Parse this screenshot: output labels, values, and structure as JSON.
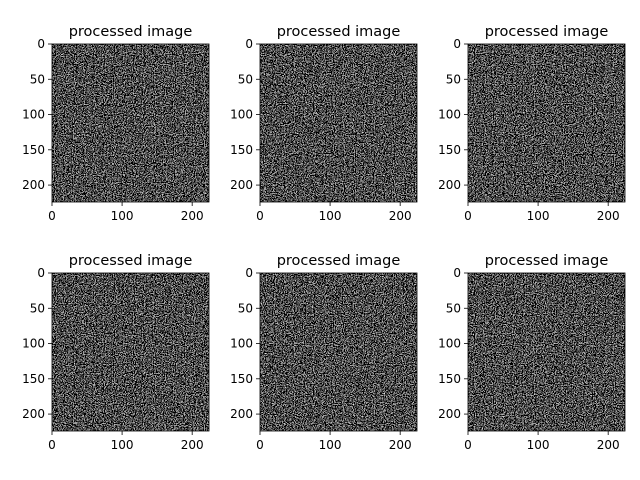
{
  "chart_data": [
    {
      "type": "heatmap",
      "title": "processed image",
      "colormap": "gray",
      "xlim": [
        0,
        224
      ],
      "ylim": [
        224,
        0
      ],
      "xticks": [
        0,
        100,
        200
      ],
      "yticks": [
        0,
        50,
        100,
        150,
        200
      ],
      "xtick_labels": [
        "0",
        "100",
        "200"
      ],
      "ytick_labels": [
        "0",
        "50",
        "100",
        "150",
        "200"
      ]
    },
    {
      "type": "heatmap",
      "title": "processed image",
      "colormap": "gray",
      "xlim": [
        0,
        224
      ],
      "ylim": [
        224,
        0
      ],
      "xticks": [
        0,
        100,
        200
      ],
      "yticks": [
        0,
        50,
        100,
        150,
        200
      ],
      "xtick_labels": [
        "0",
        "100",
        "200"
      ],
      "ytick_labels": [
        "0",
        "50",
        "100",
        "150",
        "200"
      ]
    },
    {
      "type": "heatmap",
      "title": "processed image",
      "colormap": "gray",
      "xlim": [
        0,
        224
      ],
      "ylim": [
        224,
        0
      ],
      "xticks": [
        0,
        100,
        200
      ],
      "yticks": [
        0,
        50,
        100,
        150,
        200
      ],
      "xtick_labels": [
        "0",
        "100",
        "200"
      ],
      "ytick_labels": [
        "0",
        "50",
        "100",
        "150",
        "200"
      ]
    },
    {
      "type": "heatmap",
      "title": "processed image",
      "colormap": "gray",
      "xlim": [
        0,
        224
      ],
      "ylim": [
        224,
        0
      ],
      "xticks": [
        0,
        100,
        200
      ],
      "yticks": [
        0,
        50,
        100,
        150,
        200
      ],
      "xtick_labels": [
        "0",
        "100",
        "200"
      ],
      "ytick_labels": [
        "0",
        "50",
        "100",
        "150",
        "200"
      ]
    },
    {
      "type": "heatmap",
      "title": "processed image",
      "colormap": "gray",
      "xlim": [
        0,
        224
      ],
      "ylim": [
        224,
        0
      ],
      "xticks": [
        0,
        100,
        200
      ],
      "yticks": [
        0,
        50,
        100,
        150,
        200
      ],
      "xtick_labels": [
        "0",
        "100",
        "200"
      ],
      "ytick_labels": [
        "0",
        "50",
        "100",
        "150",
        "200"
      ]
    },
    {
      "type": "heatmap",
      "title": "processed image",
      "colormap": "gray",
      "xlim": [
        0,
        224
      ],
      "ylim": [
        224,
        0
      ],
      "xticks": [
        0,
        100,
        200
      ],
      "yticks": [
        0,
        50,
        100,
        150,
        200
      ],
      "xtick_labels": [
        "0",
        "100",
        "200"
      ],
      "ytick_labels": [
        "0",
        "50",
        "100",
        "150",
        "200"
      ]
    }
  ]
}
